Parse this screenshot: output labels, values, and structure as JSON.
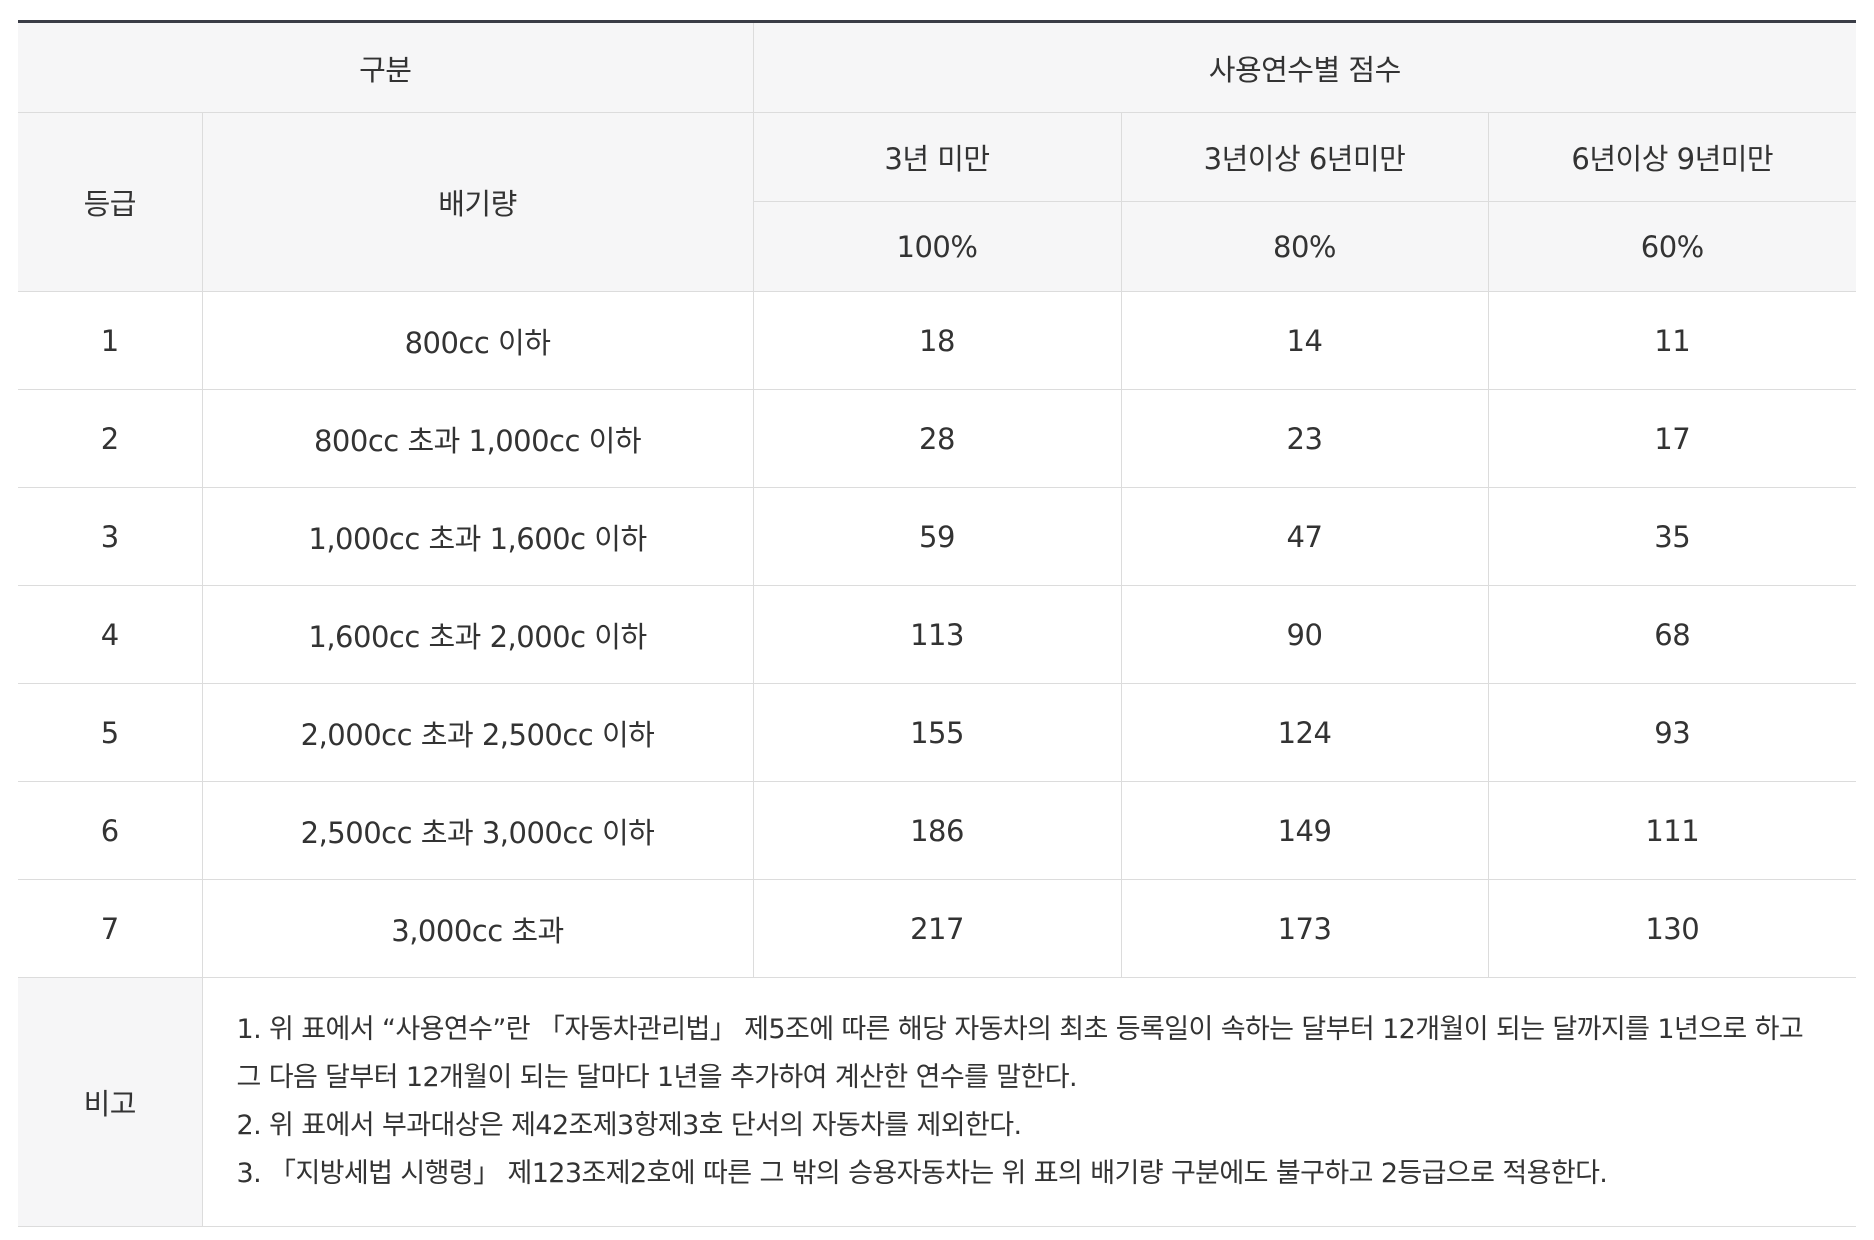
{
  "header": {
    "group_label": "구분",
    "scores_label": "사용연수별 점수",
    "grade_label": "등급",
    "displacement_label": "배기량",
    "periods": [
      "3년 미만",
      "3년이상 6년미만",
      "6년이상 9년미만"
    ],
    "rates": [
      "100%",
      "80%",
      "60%"
    ]
  },
  "rows": [
    {
      "grade": "1",
      "displacement": "800cc 이하",
      "scores": [
        "18",
        "14",
        "11"
      ]
    },
    {
      "grade": "2",
      "displacement": "800cc 초과 1,000cc 이하",
      "scores": [
        "28",
        "23",
        "17"
      ]
    },
    {
      "grade": "3",
      "displacement": "1,000cc 초과 1,600c 이하",
      "scores": [
        "59",
        "47",
        "35"
      ]
    },
    {
      "grade": "4",
      "displacement": "1,600cc 초과 2,000c 이하",
      "scores": [
        "113",
        "90",
        "68"
      ]
    },
    {
      "grade": "5",
      "displacement": "2,000cc 초과 2,500cc 이하",
      "scores": [
        "155",
        "124",
        "93"
      ]
    },
    {
      "grade": "6",
      "displacement": "2,500cc 초과 3,000cc 이하",
      "scores": [
        "186",
        "149",
        "111"
      ]
    },
    {
      "grade": "7",
      "displacement": "3,000cc 초과",
      "scores": [
        "217",
        "173",
        "130"
      ]
    }
  ],
  "notes": {
    "label": "비고",
    "lines": [
      "1. 위 표에서 “사용연수”란 「자동차관리법」 제5조에 따른 해당 자동차의 최초 등록일이 속하는 달부터 12개월이 되는 달까지를 1년으로 하고",
      "그 다음 달부터 12개월이 되는 달마다 1년을 추가하여 계산한 연수를 말한다.",
      "2. 위 표에서 부과대상은 제42조제3항제3호 단서의 자동차를 제외한다.",
      "3. 「지방세법 시행령」 제123조제2호에 따른 그 밖의 승용자동차는 위 표의 배기량 구분에도 불구하고 2등급으로 적용한다."
    ]
  }
}
